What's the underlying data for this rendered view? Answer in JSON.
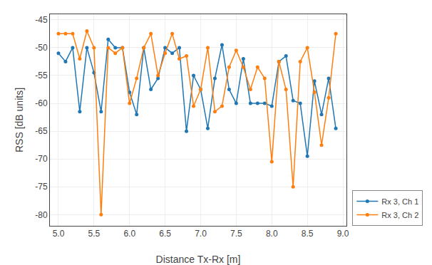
{
  "chart_data": {
    "type": "line",
    "xlabel": "Distance Tx-Rx [m]",
    "ylabel": "RSS [dB units]",
    "x": [
      5.0,
      5.1,
      5.2,
      5.3,
      5.4,
      5.5,
      5.6,
      5.7,
      5.8,
      5.9,
      6.0,
      6.1,
      6.2,
      6.3,
      6.4,
      6.5,
      6.6,
      6.7,
      6.8,
      6.9,
      7.0,
      7.1,
      7.2,
      7.3,
      7.4,
      7.5,
      7.6,
      7.7,
      7.8,
      7.9,
      8.0,
      8.1,
      8.2,
      8.3,
      8.4,
      8.5,
      8.6,
      8.7,
      8.8,
      8.9
    ],
    "series": [
      {
        "name": "Rx 3, Ch 1",
        "color": "#1f77b4",
        "marker": "circle",
        "line_style": "solid",
        "values": [
          -51.0,
          -52.5,
          -50.0,
          -61.5,
          -50.0,
          -54.5,
          -61.5,
          -48.5,
          -50.0,
          -50.0,
          -58.0,
          -62.0,
          -50.0,
          -57.5,
          -55.5,
          -50.0,
          -51.0,
          -50.0,
          -65.0,
          -55.0,
          -57.5,
          -64.5,
          -55.5,
          -49.5,
          -57.5,
          -60.0,
          -52.0,
          -60.0,
          -60.0,
          -60.0,
          -60.5,
          -52.5,
          -51.5,
          -59.5,
          -60.0,
          -69.5,
          -56.0,
          -62.0,
          -55.5,
          -64.5
        ]
      },
      {
        "name": "Rx 3, Ch 2",
        "color": "#ff7f0e",
        "marker": "circle",
        "line_style": "solid",
        "values": [
          -47.5,
          -47.5,
          -47.5,
          -52.0,
          -47.0,
          -50.0,
          -80.0,
          -50.0,
          -51.0,
          -50.0,
          -60.0,
          -55.5,
          -50.0,
          -47.5,
          -55.0,
          -51.0,
          -47.5,
          -52.0,
          -51.5,
          -60.5,
          -57.5,
          -50.0,
          -61.5,
          -60.5,
          -53.5,
          -50.5,
          -53.5,
          -57.5,
          -53.5,
          -55.5,
          -70.5,
          -52.5,
          -57.5,
          -75.0,
          -52.5,
          -50.0,
          -58.0,
          -67.5,
          -59.0,
          -47.5
        ]
      }
    ],
    "xlim": [
      4.88,
      9.05
    ],
    "ylim": [
      -82,
      -44
    ],
    "xticks": [
      {
        "value": 5.0,
        "label": "5.0"
      },
      5.5,
      {
        "value": 6.0,
        "label": "6.0"
      },
      6.5,
      {
        "value": 7.0,
        "label": "7.0"
      },
      7.5,
      {
        "value": 8.0,
        "label": "8.0"
      },
      8.5,
      {
        "value": 9.0,
        "label": "9.0"
      }
    ],
    "yticks": [
      -80,
      -75,
      -70,
      -65,
      -60,
      -55,
      -50,
      -45
    ],
    "grid": true,
    "legend": "lower right"
  }
}
